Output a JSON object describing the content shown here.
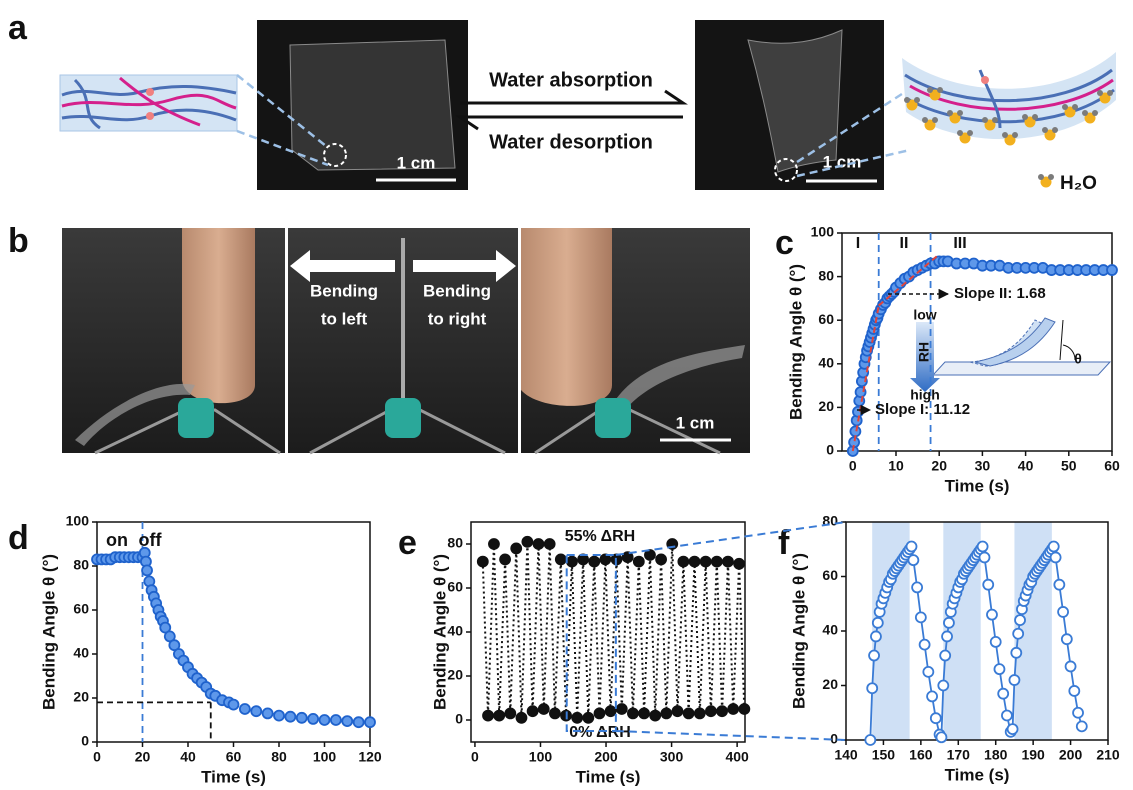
{
  "panel_a": {
    "label": "a",
    "reaction": {
      "forward": "Water absorption",
      "reverse": "Water desorption"
    },
    "scale_bars": [
      "1 cm",
      "1 cm"
    ],
    "water_label": "H₂O"
  },
  "panel_b": {
    "label": "b",
    "arrows": [
      {
        "lines": [
          "Bending",
          "to left"
        ]
      },
      {
        "lines": [
          "Bending",
          "to right"
        ]
      }
    ],
    "scale_bar": "1 cm"
  },
  "chart_data": [
    {
      "type": "scatter",
      "panel_label": "c",
      "x_label": "Time (s)",
      "y_label": "Bending Angle θ (°)",
      "xlim": [
        -2.5,
        60
      ],
      "xticks": [
        0,
        10,
        20,
        30,
        40,
        50,
        60
      ],
      "ylim": [
        0,
        100
      ],
      "yticks": [
        0,
        20,
        40,
        60,
        80,
        100
      ],
      "series": [
        {
          "color": "#1f62cc",
          "marker_fill": "#5e98ea",
          "x": [
            0,
            0.3,
            0.6,
            0.9,
            1.2,
            1.5,
            1.8,
            2.1,
            2.4,
            2.7,
            3,
            3.3,
            3.6,
            3.9,
            4.2,
            4.5,
            4.8,
            5.1,
            5.4,
            5.7,
            6,
            6.5,
            7,
            7.5,
            8,
            8.5,
            9,
            9.5,
            10,
            11,
            12,
            13,
            14,
            15,
            16,
            17,
            18,
            19,
            20,
            21,
            22,
            24,
            26,
            28,
            30,
            32,
            34,
            36,
            38,
            40,
            42,
            44,
            46,
            48,
            50,
            52,
            54,
            56,
            58,
            60
          ],
          "values": [
            0,
            4,
            9,
            14,
            18,
            23,
            27,
            32,
            36,
            40,
            43,
            46,
            48,
            50,
            52,
            54,
            56,
            58,
            60,
            61,
            63,
            65,
            67,
            68,
            70,
            71,
            72,
            73,
            75,
            77,
            79,
            80,
            82,
            83,
            84,
            85,
            86,
            86,
            87,
            87,
            87,
            86,
            86,
            86,
            85,
            85,
            85,
            84,
            84,
            84,
            84,
            84,
            83,
            83,
            83,
            83,
            83,
            83,
            83,
            83
          ]
        }
      ],
      "reference_lines": {
        "x": [
          6,
          18
        ]
      },
      "fits": [
        {
          "label": "Slope I: 11.12",
          "slope": 11.12,
          "x": [
            0,
            6
          ]
        },
        {
          "label": "Slope II: 1.68",
          "slope": 1.68,
          "x": [
            6,
            20
          ]
        }
      ],
      "regions": [
        "I",
        "II",
        "III"
      ],
      "inset_labels": [
        "low",
        "RH",
        "high",
        "θ"
      ]
    },
    {
      "type": "scatter",
      "panel_label": "d",
      "x_label": "Time (s)",
      "y_label": "Bending Angle θ (°)",
      "xlim": [
        0,
        120
      ],
      "xticks": [
        0,
        20,
        40,
        60,
        80,
        100,
        120
      ],
      "ylim": [
        0,
        100
      ],
      "yticks": [
        0,
        20,
        40,
        60,
        80,
        100
      ],
      "series": [
        {
          "color": "#1f62cc",
          "marker_fill": "#5e98ea",
          "x": [
            0,
            2,
            4,
            6,
            8,
            10,
            12,
            14,
            16,
            18,
            20,
            21,
            21.5,
            22,
            23,
            24,
            25,
            26,
            27,
            28,
            29,
            30,
            32,
            34,
            36,
            38,
            40,
            42,
            44,
            46,
            48,
            50,
            52,
            55,
            58,
            60,
            65,
            70,
            75,
            80,
            85,
            90,
            95,
            100,
            105,
            110,
            115,
            120
          ],
          "values": [
            83,
            83,
            83,
            83,
            84,
            84,
            84,
            84,
            84,
            84,
            84,
            86,
            82,
            78,
            73,
            69,
            66,
            63,
            60,
            57,
            55,
            52,
            48,
            44,
            40,
            37,
            34,
            31,
            29,
            27,
            25,
            22,
            21,
            19,
            18,
            17,
            15,
            14,
            13,
            12,
            11.5,
            11,
            10.5,
            10,
            10,
            9.5,
            9,
            9
          ]
        }
      ],
      "reference_lines": {
        "x": [
          20
        ]
      },
      "guide": {
        "x": 50,
        "y": 18
      },
      "annotations": [
        "on",
        "off"
      ]
    },
    {
      "type": "line",
      "panel_label": "e",
      "x_label": "Time (s)",
      "y_label": "Bending Angle θ (°)",
      "xlim": [
        -6,
        412
      ],
      "xticks": [
        0,
        100,
        200,
        300,
        400
      ],
      "ylim": [
        -10,
        90
      ],
      "yticks": [
        0,
        20,
        40,
        60,
        80
      ],
      "series": [
        {
          "color": "#111111",
          "marker_fill": "#111111",
          "line_style": "dotted",
          "x": [
            12,
            20,
            29,
            37,
            46,
            54,
            63,
            71,
            80,
            88,
            97,
            105,
            114,
            122,
            131,
            139,
            148,
            156,
            165,
            173,
            182,
            190,
            199,
            207,
            216,
            224,
            233,
            241,
            250,
            258,
            267,
            275,
            284,
            292,
            301,
            309,
            318,
            326,
            335,
            343,
            352,
            360,
            369,
            377,
            386,
            394,
            403,
            411
          ],
          "values": [
            72,
            2,
            80,
            2,
            73,
            3,
            78,
            1,
            81,
            4,
            80,
            5,
            80,
            3,
            73,
            2,
            72,
            1,
            73,
            1,
            72,
            3,
            73,
            4,
            73,
            5,
            74,
            3,
            72,
            3,
            75,
            2,
            73,
            3,
            80,
            4,
            72,
            3,
            72,
            3,
            72,
            4,
            72,
            4,
            72,
            5,
            71,
            5
          ]
        }
      ],
      "selection": {
        "x": [
          140,
          215
        ],
        "y": [
          -5,
          75
        ]
      },
      "annotations": [
        "55% ΔRH",
        "0% ΔRH"
      ]
    },
    {
      "type": "line",
      "panel_label": "f",
      "x_label": "Time (s)",
      "y_label": "Bending Angle θ (°)",
      "xlim": [
        140,
        210
      ],
      "xticks": [
        140,
        150,
        160,
        170,
        180,
        190,
        200,
        210
      ],
      "ylim": [
        0,
        80
      ],
      "yticks": [
        0,
        20,
        40,
        60,
        80
      ],
      "shaded_ranges": [
        [
          147,
          157
        ],
        [
          166,
          176
        ],
        [
          185,
          195
        ]
      ],
      "series": [
        {
          "color": "#3a7bd5",
          "marker_fill": "#ffffff",
          "line_style": "solid",
          "x": [
            146.5,
            147,
            147.5,
            148,
            148.5,
            149,
            149.5,
            150,
            150.5,
            151,
            151.5,
            152,
            152.5,
            153,
            153.5,
            154,
            154.5,
            155,
            155.5,
            156,
            156.5,
            157,
            157.5,
            158,
            159,
            160,
            161,
            162,
            163,
            164,
            165,
            165.5,
            166,
            166.5,
            167,
            167.5,
            168,
            168.5,
            169,
            169.5,
            170,
            170.5,
            171,
            171.5,
            172,
            172.5,
            173,
            173.5,
            174,
            174.5,
            175,
            175.5,
            176,
            176.5,
            177,
            178,
            179,
            180,
            181,
            182,
            183,
            184,
            184.5,
            185,
            185.5,
            186,
            186.5,
            187,
            187.5,
            188,
            188.5,
            189,
            189.5,
            190,
            190.5,
            191,
            191.5,
            192,
            192.5,
            193,
            193.5,
            194,
            194.5,
            195,
            195.5,
            196,
            197,
            198,
            199,
            200,
            201,
            202,
            203
          ],
          "values": [
            0,
            19,
            31,
            38,
            43,
            47,
            50,
            52,
            54,
            56,
            58,
            59,
            61,
            62,
            63,
            64,
            65,
            66,
            67,
            68,
            69,
            70,
            71,
            66,
            56,
            45,
            35,
            25,
            16,
            8,
            2,
            1,
            20,
            31,
            38,
            43,
            47,
            50,
            52,
            54,
            56,
            58,
            59,
            61,
            62,
            63,
            64,
            65,
            66,
            67,
            68,
            69,
            70,
            71,
            67,
            57,
            46,
            36,
            26,
            17,
            9,
            3,
            4,
            22,
            32,
            39,
            44,
            48,
            51,
            53,
            55,
            57,
            58,
            60,
            61,
            62,
            63,
            64,
            65,
            66,
            67,
            68,
            69,
            70,
            71,
            67,
            57,
            47,
            37,
            27,
            18,
            10,
            5
          ]
        }
      ]
    }
  ]
}
